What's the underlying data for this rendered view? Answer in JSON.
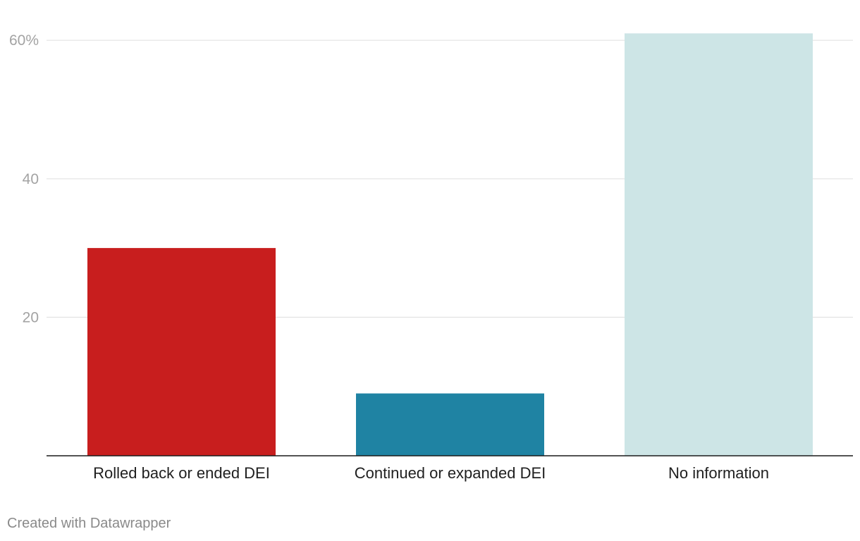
{
  "chart_data": {
    "type": "bar",
    "categories": [
      "Rolled back or ended DEI",
      "Continued or expanded DEI",
      "No information"
    ],
    "values": [
      30,
      9,
      61
    ],
    "colors": [
      "#c81e1e",
      "#1f83a3",
      "#cde5e6"
    ],
    "yticks": [
      {
        "value": 20,
        "label": "20"
      },
      {
        "value": 40,
        "label": "40"
      },
      {
        "value": 60,
        "label": "60%"
      }
    ],
    "ylim": [
      0,
      61
    ],
    "grid": true,
    "title": "",
    "xlabel": "",
    "ylabel": ""
  },
  "footer": {
    "credit": "Created with Datawrapper"
  }
}
